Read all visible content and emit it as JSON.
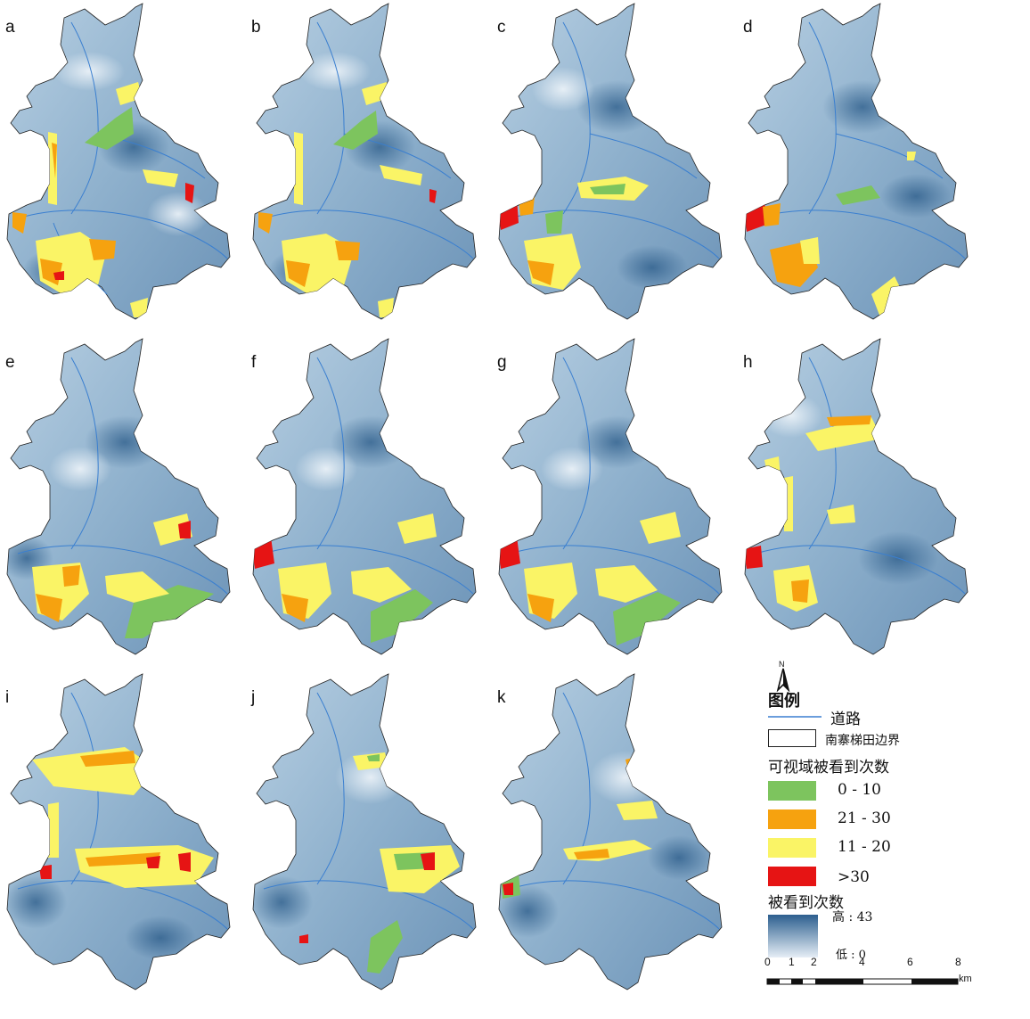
{
  "panels": [
    "a",
    "b",
    "c",
    "d",
    "e",
    "f",
    "g",
    "h",
    "i",
    "j",
    "k"
  ],
  "legend": {
    "north_label": "N",
    "title": "图例",
    "road_label": "道路",
    "boundary_label": "南寨梯田边界",
    "visibility_title": "可视域被看到次数",
    "classes": [
      {
        "label": "0 - 10",
        "color": "#7dc45e"
      },
      {
        "label": "21 - 30",
        "color": "#f6a20f"
      },
      {
        "label": "11 - 20",
        "color": "#faf466"
      },
      {
        "label": ">30",
        "color": "#e61414"
      }
    ],
    "ramp_title": "被看到次数",
    "ramp_high": "高 : 43",
    "ramp_low": "低 : 0",
    "ramp_colors": {
      "high": "#2c5f8f",
      "low": "#e6eef6"
    },
    "road_color": "#3a7fd0",
    "scalebar": {
      "ticks": [
        "0",
        "1",
        "2",
        "4",
        "6",
        "8"
      ],
      "unit": "km"
    }
  }
}
